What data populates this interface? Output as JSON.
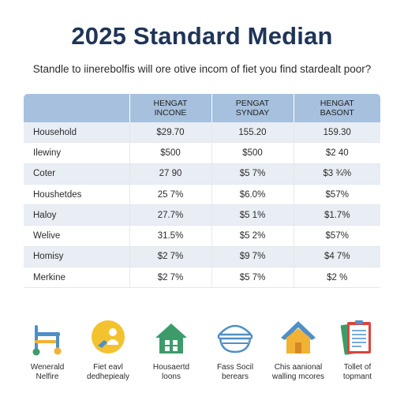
{
  "page": {
    "title": "2025 Standard Median",
    "subtitle": "Standle to iinerebolfis will ore otive incom of fiet you find stardealt poor?"
  },
  "table": {
    "headers": [
      {
        "line1": "",
        "line2": ""
      },
      {
        "line1": "HENGAT",
        "line2": "INCONE"
      },
      {
        "line1": "PENGAT",
        "line2": "SYNDAY"
      },
      {
        "line1": "HENGAT",
        "line2": "BASONT"
      }
    ],
    "rows": [
      {
        "label": "Household",
        "values": [
          "$29.70",
          "155.20",
          "159.30"
        ]
      },
      {
        "label": "Ilewiny",
        "values": [
          "$500",
          "$500",
          "$2 40"
        ]
      },
      {
        "label": "Coter",
        "values": [
          "27 90",
          "$5 7%",
          "$3 ¾%"
        ]
      },
      {
        "label": "Houshetdes",
        "values": [
          "25 7%",
          "$6.0%",
          "$57%"
        ]
      },
      {
        "label": "Haloy",
        "values": [
          "27.7%",
          "$5 1%",
          "$1.7%"
        ]
      },
      {
        "label": "Welive",
        "values": [
          "31.5%",
          "$5 2%",
          "$57%"
        ]
      },
      {
        "label": "Homisy",
        "values": [
          "$2 7%",
          "$9 7%",
          "$4 7%"
        ]
      },
      {
        "label": "Merkine",
        "values": [
          "$2 7%",
          "$5 7%",
          "$2 %"
        ]
      }
    ]
  },
  "icons": [
    {
      "name": "walker-icon",
      "line1": "Wenerald",
      "line2": "Nelfire",
      "color": "#4f8fc7"
    },
    {
      "name": "support-icon",
      "line1": "Fiet eavl",
      "line2": "dedhepiealy",
      "color": "#f3c22f"
    },
    {
      "name": "house-icon",
      "line1": "Housaertd",
      "line2": "loons",
      "color": "#3d9b6a"
    },
    {
      "name": "bowl-icon",
      "line1": "Fass Socil",
      "line2": "berears",
      "color": "#4f8fc7"
    },
    {
      "name": "home-icon",
      "line1": "Chis aanional",
      "line2": "walling mcores",
      "color": "#f2b233"
    },
    {
      "name": "clipboard-icon",
      "line1": "Tollet of",
      "line2": "topmant",
      "color": "#d9453c"
    }
  ]
}
